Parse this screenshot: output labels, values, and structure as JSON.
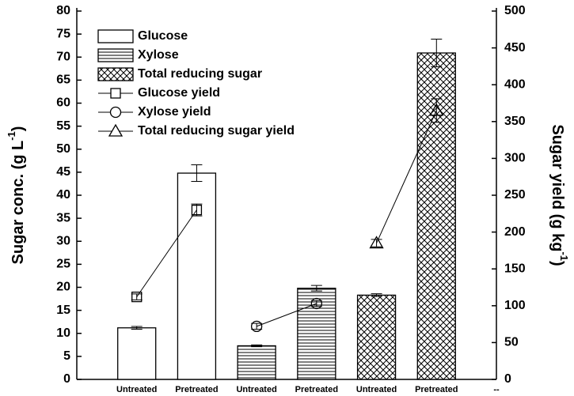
{
  "chart_data": {
    "type": "bar",
    "ylabel": [
      "Sugar conc. (g L",
      "-1",
      ")"
    ],
    "y2label": [
      "Sugar yield (g kg",
      "-1",
      ")"
    ],
    "categories": [
      null,
      "Untreated",
      "Pretreated",
      "Untreated",
      "Pretreated",
      "Untreated",
      "Pretreated",
      "--"
    ],
    "ylim": [
      0,
      80
    ],
    "yticks": [
      0,
      5,
      10,
      15,
      20,
      25,
      30,
      35,
      40,
      45,
      50,
      55,
      60,
      65,
      70,
      75,
      80
    ],
    "y2lim": [
      0,
      500
    ],
    "y2ticks": [
      0,
      50,
      100,
      150,
      200,
      250,
      300,
      350,
      400,
      450,
      500
    ],
    "legend": "upper left",
    "series": [
      {
        "name": "Glucose",
        "type": "bar",
        "color": "#000000",
        "hatch": "none",
        "values": [
          null,
          11.2,
          44.8,
          null,
          null,
          null,
          null,
          null
        ],
        "errors": [
          null,
          0.3,
          1.8,
          null,
          null,
          null,
          null,
          null
        ]
      },
      {
        "name": "Xylose",
        "type": "bar",
        "color": "#000000",
        "hatch": "horizontal",
        "values": [
          null,
          null,
          null,
          7.3,
          19.8,
          null,
          null,
          null
        ],
        "errors": [
          null,
          null,
          null,
          0.2,
          0.6,
          null,
          null,
          null
        ]
      },
      {
        "name": "Total reducing sugar",
        "type": "bar",
        "color": "#000000",
        "hatch": "cross",
        "values": [
          null,
          null,
          null,
          null,
          null,
          18.3,
          70.9,
          null
        ],
        "errors": [
          null,
          null,
          null,
          null,
          null,
          0.3,
          3,
          null
        ]
      },
      {
        "name": "Glucose yield",
        "type": "line",
        "axis": "y2",
        "marker": "square",
        "color": "#000000",
        "values": [
          null,
          112,
          230,
          null,
          null,
          null,
          null,
          null
        ],
        "errors": [
          null,
          4,
          8,
          null,
          null,
          null,
          null,
          null
        ]
      },
      {
        "name": "Xylose yield",
        "type": "line",
        "axis": "y2",
        "marker": "circle",
        "color": "#000000",
        "values": [
          null,
          null,
          null,
          72,
          103,
          null,
          null,
          null
        ],
        "errors": [
          null,
          null,
          null,
          4,
          4,
          null,
          null,
          null
        ]
      },
      {
        "name": "Total reducing sugar yield",
        "type": "line",
        "axis": "y2",
        "marker": "triangle",
        "color": "#000000",
        "values": [
          null,
          null,
          null,
          null,
          null,
          185,
          365,
          null
        ],
        "errors": [
          null,
          null,
          null,
          null,
          null,
          5,
          16,
          null
        ]
      }
    ]
  }
}
